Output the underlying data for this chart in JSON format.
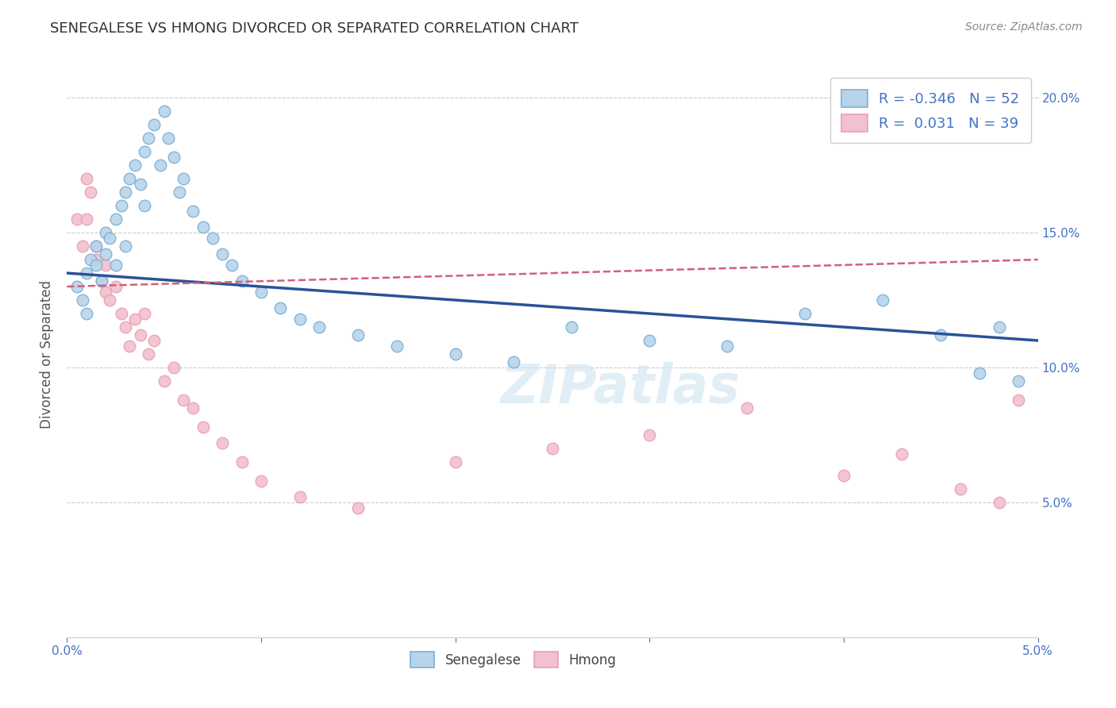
{
  "title": "SENEGALESE VS HMONG DIVORCED OR SEPARATED CORRELATION CHART",
  "source": "Source: ZipAtlas.com",
  "ylabel": "Divorced or Separated",
  "xlim": [
    0.0,
    0.05
  ],
  "ylim": [
    0.0,
    0.21
  ],
  "yticks": [
    0.05,
    0.1,
    0.15,
    0.2
  ],
  "ytick_labels": [
    "5.0%",
    "10.0%",
    "15.0%",
    "20.0%"
  ],
  "watermark": "ZIPatlas",
  "blue_color": "#7bafd4",
  "pink_color": "#e8a0b4",
  "blue_fill": "#b8d4ea",
  "pink_fill": "#f2c0ce",
  "blue_line_color": "#2a5298",
  "pink_line_color": "#d06080",
  "blue_intercept": 0.135,
  "blue_slope": -0.5,
  "pink_intercept": 0.13,
  "pink_slope": 0.2,
  "senegalese_x": [
    0.0005,
    0.0008,
    0.001,
    0.001,
    0.0012,
    0.0015,
    0.0015,
    0.0018,
    0.002,
    0.002,
    0.0022,
    0.0025,
    0.0025,
    0.0028,
    0.003,
    0.003,
    0.0032,
    0.0035,
    0.0038,
    0.004,
    0.004,
    0.0042,
    0.0045,
    0.0048,
    0.005,
    0.0052,
    0.0055,
    0.0058,
    0.006,
    0.0065,
    0.007,
    0.0075,
    0.008,
    0.0085,
    0.009,
    0.01,
    0.011,
    0.012,
    0.013,
    0.015,
    0.017,
    0.02,
    0.023,
    0.026,
    0.03,
    0.034,
    0.038,
    0.042,
    0.045,
    0.047,
    0.048,
    0.049
  ],
  "senegalese_y": [
    0.13,
    0.125,
    0.135,
    0.12,
    0.14,
    0.145,
    0.138,
    0.132,
    0.15,
    0.142,
    0.148,
    0.155,
    0.138,
    0.16,
    0.165,
    0.145,
    0.17,
    0.175,
    0.168,
    0.18,
    0.16,
    0.185,
    0.19,
    0.175,
    0.195,
    0.185,
    0.178,
    0.165,
    0.17,
    0.158,
    0.152,
    0.148,
    0.142,
    0.138,
    0.132,
    0.128,
    0.122,
    0.118,
    0.115,
    0.112,
    0.108,
    0.105,
    0.102,
    0.115,
    0.11,
    0.108,
    0.12,
    0.125,
    0.112,
    0.098,
    0.115,
    0.095
  ],
  "hmong_x": [
    0.0005,
    0.0008,
    0.001,
    0.001,
    0.0012,
    0.0015,
    0.0015,
    0.0018,
    0.002,
    0.002,
    0.0022,
    0.0025,
    0.0028,
    0.003,
    0.0032,
    0.0035,
    0.0038,
    0.004,
    0.0042,
    0.0045,
    0.005,
    0.0055,
    0.006,
    0.0065,
    0.007,
    0.008,
    0.009,
    0.01,
    0.012,
    0.015,
    0.02,
    0.025,
    0.03,
    0.035,
    0.04,
    0.043,
    0.046,
    0.048,
    0.049
  ],
  "hmong_y": [
    0.155,
    0.145,
    0.17,
    0.155,
    0.165,
    0.145,
    0.14,
    0.132,
    0.128,
    0.138,
    0.125,
    0.13,
    0.12,
    0.115,
    0.108,
    0.118,
    0.112,
    0.12,
    0.105,
    0.11,
    0.095,
    0.1,
    0.088,
    0.085,
    0.078,
    0.072,
    0.065,
    0.058,
    0.052,
    0.048,
    0.065,
    0.07,
    0.075,
    0.085,
    0.06,
    0.068,
    0.055,
    0.05,
    0.088
  ]
}
